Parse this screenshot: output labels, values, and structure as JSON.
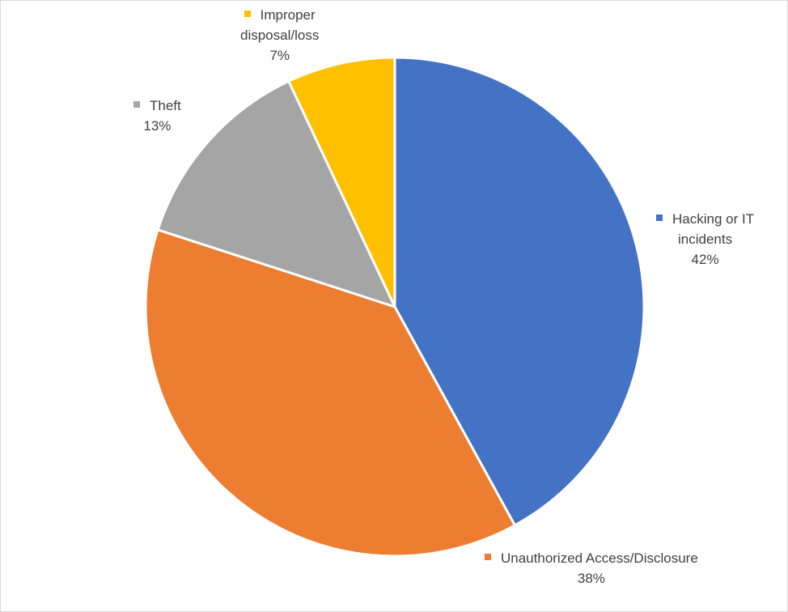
{
  "chart_data": {
    "type": "pie",
    "title": "",
    "start_angle_deg": 0,
    "direction": "clockwise",
    "legend": "none",
    "slices": [
      {
        "category": "Hacking or IT incidents",
        "label_lines": [
          "Hacking or IT",
          "incidents"
        ],
        "value": 42,
        "percent_label": "42%",
        "color": "#4472C4"
      },
      {
        "category": "Unauthorized Access/Disclosure",
        "label_lines": [
          "Unauthorized Access/Disclosure"
        ],
        "value": 38,
        "percent_label": "38%",
        "color": "#ED7D31"
      },
      {
        "category": "Theft",
        "label_lines": [
          "Theft"
        ],
        "value": 13,
        "percent_label": "13%",
        "color": "#A5A5A5"
      },
      {
        "category": "Improper disposal/loss",
        "label_lines": [
          "Improper",
          "disposal/loss"
        ],
        "value": 7,
        "percent_label": "7%",
        "color": "#FFC000"
      }
    ]
  }
}
